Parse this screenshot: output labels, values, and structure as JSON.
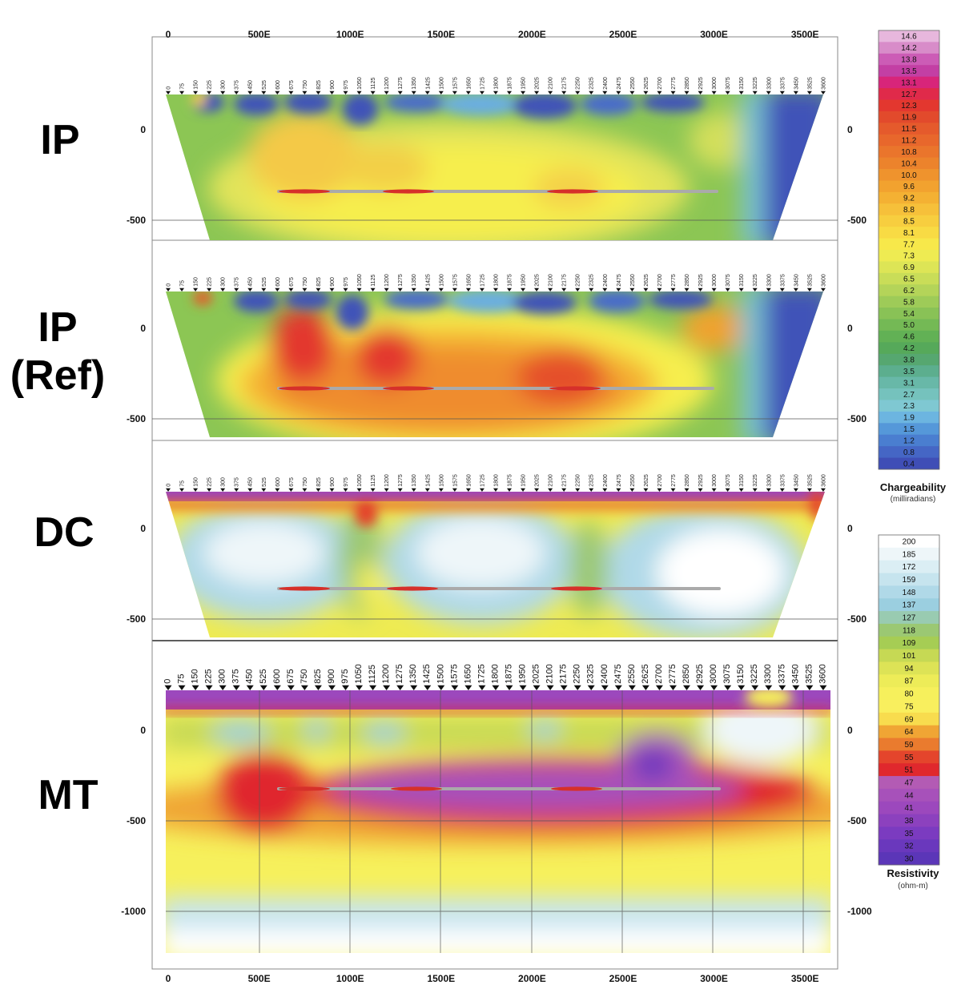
{
  "chart_data": {
    "type": "heatmap",
    "x_axis": {
      "tick_labels": [
        "0",
        "500E",
        "1000E",
        "1500E",
        "2000E",
        "2500E",
        "3000E",
        "3500E"
      ],
      "tick_values": [
        0,
        500,
        1000,
        1500,
        2000,
        2500,
        3000,
        3500
      ],
      "range": [
        0,
        3650
      ]
    },
    "stations": [
      "0",
      "75",
      "150",
      "225",
      "300",
      "375",
      "450",
      "525",
      "600",
      "675",
      "750",
      "825",
      "900",
      "975",
      "1050",
      "1125",
      "1200",
      "1275",
      "1350",
      "1425",
      "1500",
      "1575",
      "1650",
      "1725",
      "1800",
      "1875",
      "1950",
      "2025",
      "2100",
      "2175",
      "2250",
      "2325",
      "2400",
      "2475",
      "2550",
      "2625",
      "2700",
      "2775",
      "2850",
      "2925",
      "3000",
      "3075",
      "3150",
      "3225",
      "3300",
      "3375",
      "3450",
      "3525",
      "3600"
    ],
    "panels": [
      {
        "label": "IP",
        "y_tick_labels": [
          "0",
          "-500"
        ],
        "y_tick_values": [
          0,
          -500
        ],
        "colorbar": "chargeability",
        "anomalies": [
          {
            "x": 760,
            "y": -100,
            "value": 10.4
          },
          {
            "x": 1200,
            "y": -230,
            "value": 9.6
          },
          {
            "x": 2150,
            "y": -320,
            "value": 9.2
          }
        ]
      },
      {
        "label": "IP",
        "sublabel": "(Ref)",
        "y_tick_labels": [
          "0",
          "-500"
        ],
        "y_tick_values": [
          0,
          -500
        ],
        "colorbar": "chargeability",
        "anomalies": [
          {
            "x": 720,
            "y": -80,
            "value": 13.1
          },
          {
            "x": 1230,
            "y": -200,
            "value": 12.7
          },
          {
            "x": 2100,
            "y": -300,
            "value": 11.9
          },
          {
            "x": 2950,
            "y": 30,
            "value": 10.0
          }
        ]
      },
      {
        "label": "DC",
        "y_tick_labels": [
          "0",
          "-500"
        ],
        "y_tick_values": [
          0,
          -500
        ],
        "colorbar": "resistivity",
        "anomalies": [
          {
            "x": 500,
            "y": -120,
            "value": 200
          },
          {
            "x": 1850,
            "y": -150,
            "value": 200
          },
          {
            "x": 3050,
            "y": -230,
            "value": 200
          }
        ]
      },
      {
        "label": "MT",
        "y_tick_labels": [
          "0",
          "-500",
          "-1000"
        ],
        "y_tick_values": [
          0,
          -500,
          -1000
        ],
        "colorbar": "resistivity",
        "anomalies": [
          {
            "x": 650,
            "y": -340,
            "value": 51
          },
          {
            "x": 1800,
            "y": -350,
            "value": 41
          },
          {
            "x": 2700,
            "y": -250,
            "value": 32
          },
          {
            "x": 3150,
            "y": -50,
            "value": 200
          }
        ]
      }
    ],
    "colorbars": {
      "chargeability": {
        "title": "Chargeability",
        "units": "(milliradians)",
        "ticks": [
          "14.6",
          "14.2",
          "13.8",
          "13.5",
          "13.1",
          "12.7",
          "12.3",
          "11.9",
          "11.5",
          "11.2",
          "10.8",
          "10.4",
          "10.0",
          "9.6",
          "9.2",
          "8.8",
          "8.5",
          "8.1",
          "7.7",
          "7.3",
          "6.9",
          "6.5",
          "6.2",
          "5.8",
          "5.4",
          "5.0",
          "4.6",
          "4.2",
          "3.8",
          "3.5",
          "3.1",
          "2.7",
          "2.3",
          "1.9",
          "1.5",
          "1.2",
          "0.8",
          "0.4"
        ],
        "colors": [
          "#e7b7dd",
          "#d88cc9",
          "#cc5cb6",
          "#c33fa4",
          "#d8257a",
          "#e02a4a",
          "#e3372f",
          "#e24a2c",
          "#e55a2c",
          "#e8672c",
          "#ea752c",
          "#ec832c",
          "#ef932d",
          "#f2a22f",
          "#f4b133",
          "#f6c03a",
          "#f7ce3f",
          "#f8db44",
          "#f7e84a",
          "#eeeb52",
          "#dde556",
          "#c9dd58",
          "#b4d459",
          "#9ecb58",
          "#89c256",
          "#74b955",
          "#62b155",
          "#56a95a",
          "#56a770",
          "#5cae8e",
          "#68b8a8",
          "#75c2bd",
          "#7fc8d2",
          "#6cb5e0",
          "#5598d9",
          "#4a7ed0",
          "#4566c5",
          "#3f4eb6"
        ]
      },
      "resistivity": {
        "title": "Resistivity",
        "units": "(ohm-m)",
        "ticks": [
          "200",
          "185",
          "172",
          "159",
          "148",
          "137",
          "127",
          "118",
          "109",
          "101",
          "94",
          "87",
          "80",
          "75",
          "69",
          "64",
          "59",
          "55",
          "51",
          "47",
          "44",
          "41",
          "38",
          "35",
          "32",
          "30"
        ],
        "colors": [
          "#ffffff",
          "#eef6f9",
          "#dbeef4",
          "#c6e4ee",
          "#b0d9e8",
          "#9bcfe0",
          "#99cbb1",
          "#9bc873",
          "#a6cd54",
          "#c6d954",
          "#dde356",
          "#edec58",
          "#f6f05c",
          "#f9ef5e",
          "#f8dc4e",
          "#f0a534",
          "#ea7b2e",
          "#e4452c",
          "#e0282d",
          "#b35bb4",
          "#a751ba",
          "#9c48bd",
          "#8c41be",
          "#7b3bc0",
          "#6a38bd",
          "#5b36b8"
        ]
      }
    }
  }
}
